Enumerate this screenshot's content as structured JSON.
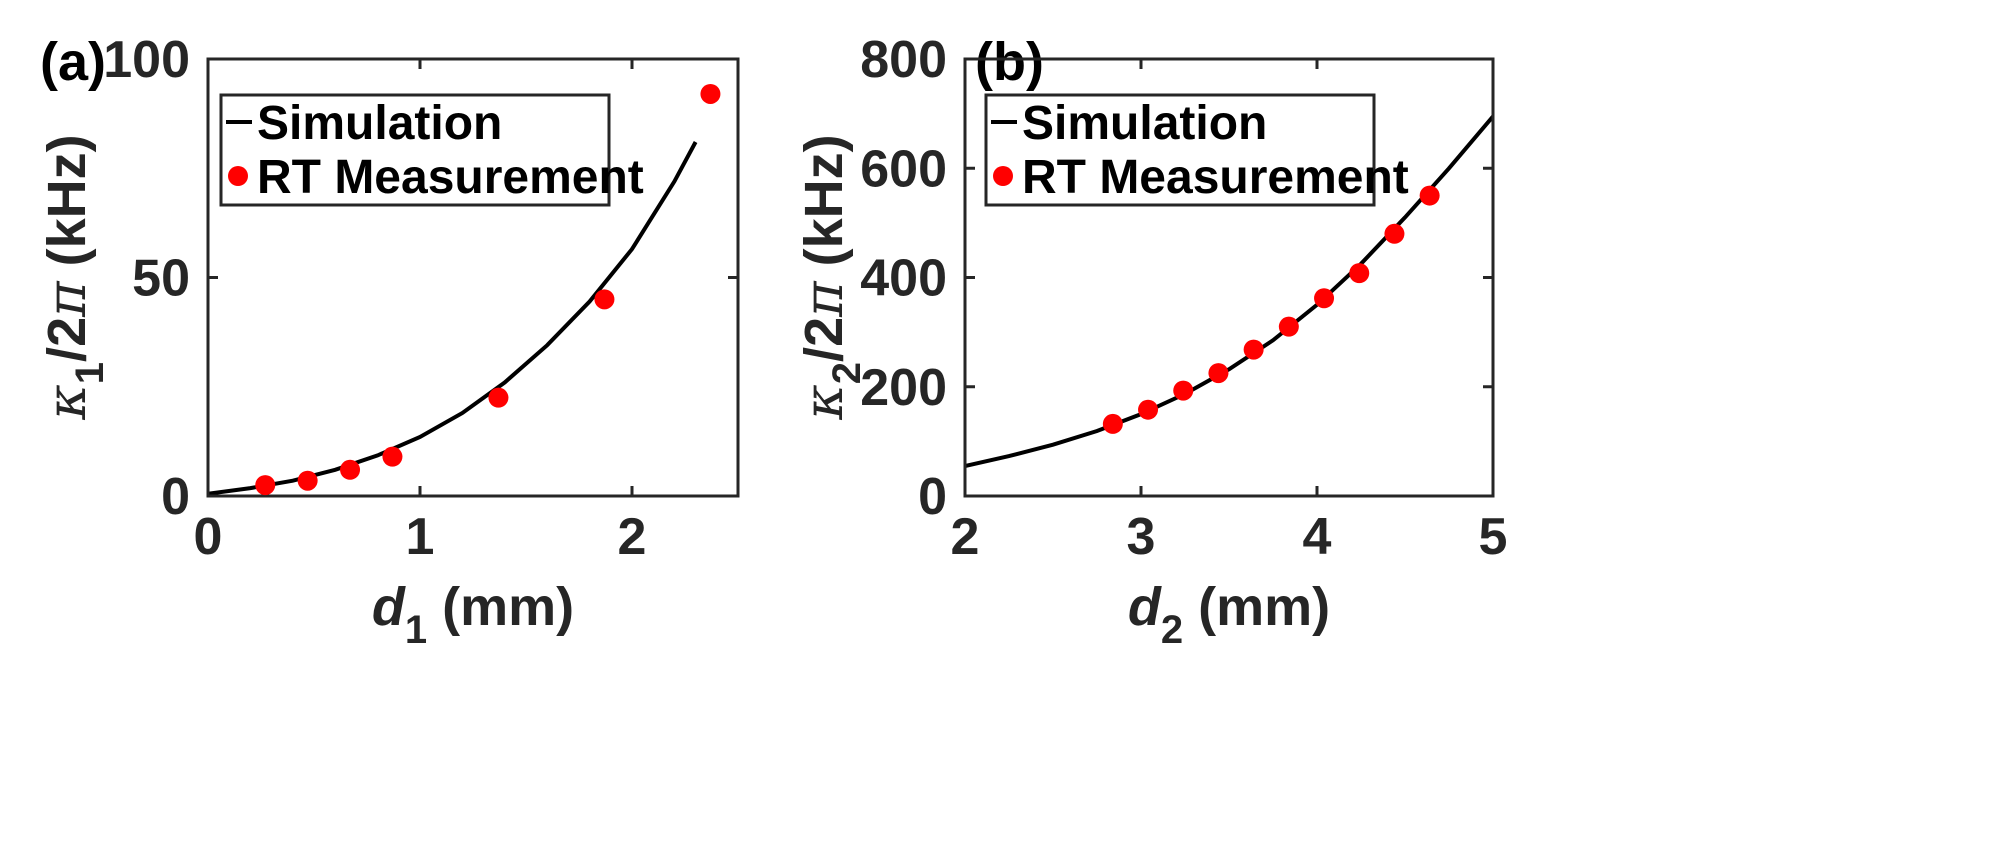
{
  "colors": {
    "sim_line": "#000000",
    "marker": "#ff0000",
    "axes": "#262626"
  },
  "chart_data": [
    {
      "type": "line",
      "panel_label": "(a)",
      "xlabel": {
        "var": "d",
        "sub": "1",
        "unit": " (mm)"
      },
      "ylabel": {
        "greek": "κ",
        "sub": "1",
        "rest": "/2",
        "pi": "π",
        "unit": " (kHz)"
      },
      "xlim": [
        0,
        2.5
      ],
      "ylim": [
        0,
        100
      ],
      "xticks": [
        0,
        1,
        2
      ],
      "xtick_labels": [
        "0",
        "1",
        "2"
      ],
      "yticks": [
        0,
        50,
        100
      ],
      "ytick_labels": [
        "0",
        "50",
        "100"
      ],
      "legend": {
        "position": "top-left",
        "entries": [
          "Simulation",
          "RT Measurement"
        ]
      },
      "series": [
        {
          "name": "Simulation",
          "kind": "line",
          "x": [
            0,
            0.2,
            0.4,
            0.6,
            0.8,
            1.0,
            1.2,
            1.4,
            1.6,
            1.8,
            2.0,
            2.2,
            2.3
          ],
          "y": [
            0.5,
            1.8,
            3.5,
            6.0,
            9.3,
            13.5,
            19.0,
            26.0,
            34.5,
            44.5,
            56.5,
            72.0,
            81.0
          ]
        },
        {
          "name": "RT Measurement",
          "kind": "scatter",
          "x": [
            0.27,
            0.47,
            0.67,
            0.87,
            1.37,
            1.87,
            2.37
          ],
          "y": [
            2.5,
            3.5,
            6.0,
            9.0,
            22.5,
            45.0,
            92.0
          ]
        }
      ]
    },
    {
      "type": "line",
      "panel_label": "(b)",
      "xlabel": {
        "var": "d",
        "sub": "2",
        "unit": " (mm)"
      },
      "ylabel": {
        "greek": "κ",
        "sub": "2",
        "rest": "/2",
        "pi": "π",
        "unit": " (kHz)"
      },
      "xlim": [
        2,
        5
      ],
      "ylim": [
        0,
        800
      ],
      "xticks": [
        2,
        3,
        4,
        5
      ],
      "xtick_labels": [
        "2",
        "3",
        "4",
        "5"
      ],
      "yticks": [
        0,
        200,
        400,
        600,
        800
      ],
      "ytick_labels": [
        "0",
        "200",
        "400",
        "600",
        "800"
      ],
      "legend": {
        "position": "top-left",
        "entries": [
          "Simulation",
          "RT Measurement"
        ]
      },
      "series": [
        {
          "name": "Simulation",
          "kind": "line",
          "x": [
            2.0,
            2.25,
            2.5,
            2.75,
            3.0,
            3.25,
            3.5,
            3.75,
            4.0,
            4.25,
            4.5,
            4.75,
            5.0
          ],
          "y": [
            55,
            73,
            94,
            119,
            150,
            187,
            232,
            285,
            350,
            425,
            510,
            600,
            695
          ]
        },
        {
          "name": "RT Measurement",
          "kind": "scatter",
          "x": [
            2.84,
            3.04,
            3.24,
            3.44,
            3.64,
            3.84,
            4.04,
            4.24,
            4.44,
            4.64
          ],
          "y": [
            132,
            158,
            193,
            225,
            268,
            310,
            362,
            408,
            480,
            550
          ]
        }
      ]
    }
  ]
}
